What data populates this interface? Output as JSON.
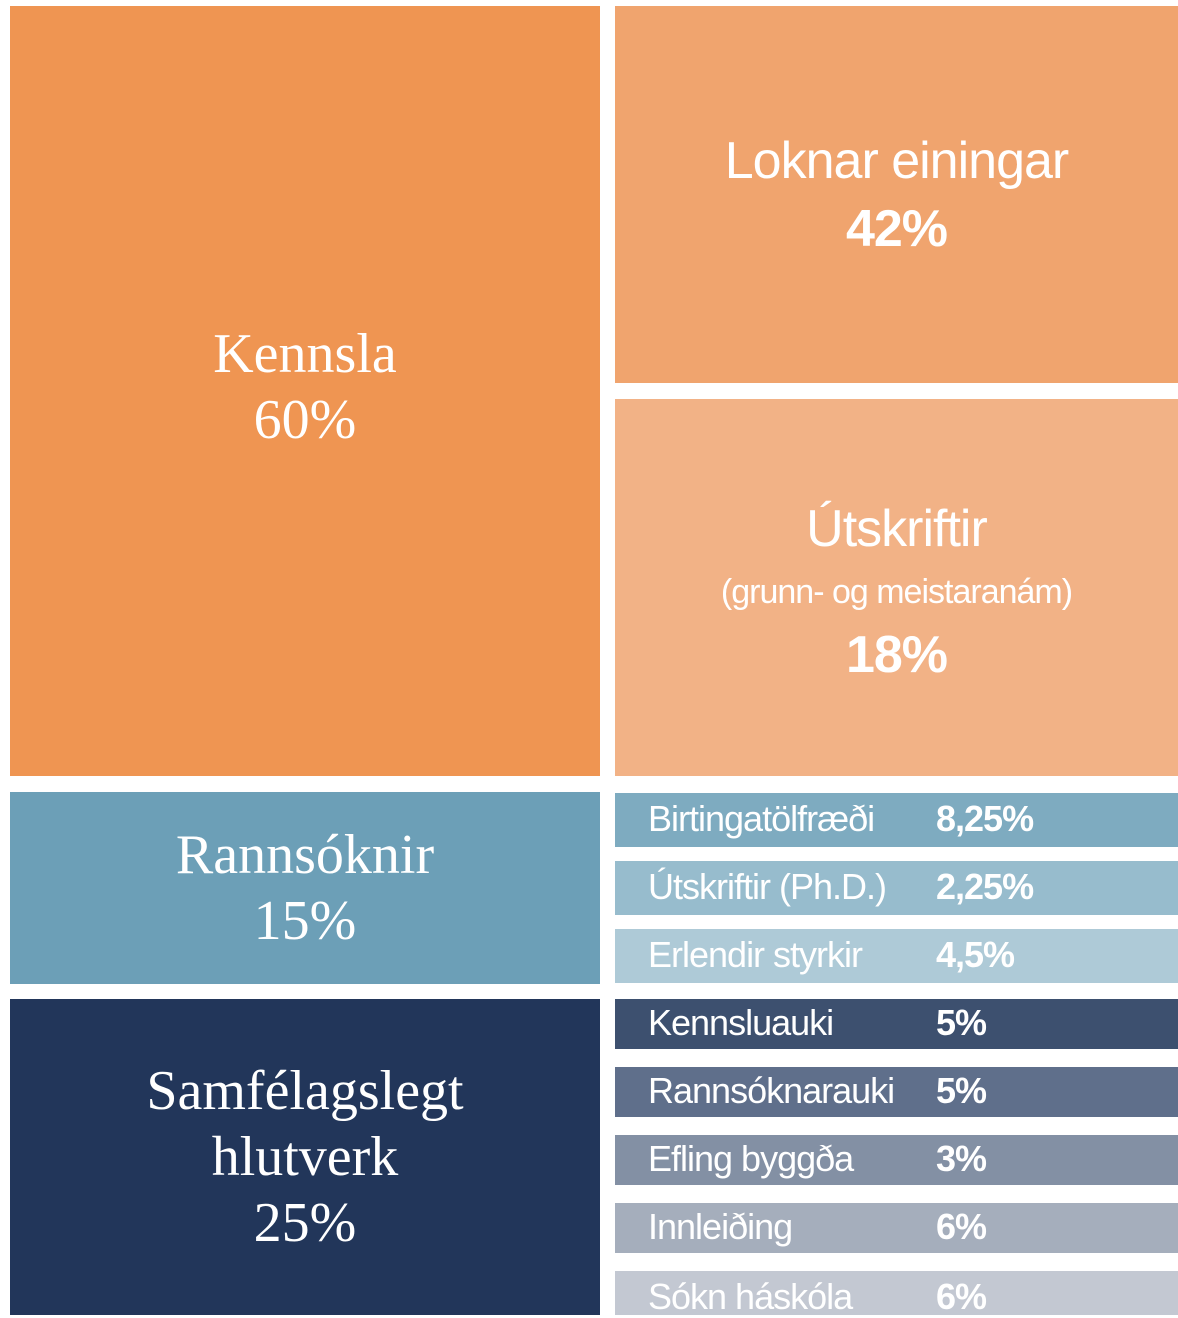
{
  "blocks": [
    {
      "label": "Kennsla",
      "value": "60%",
      "parts": [
        {
          "label": "Loknar einingar",
          "value": "42%"
        },
        {
          "label": "Útskriftir",
          "note": "(grunn- og meistaranám)",
          "value": "18%"
        }
      ]
    },
    {
      "label": "Rannsóknir",
      "value": "15%",
      "parts": [
        {
          "label": "Birtingatölfræði",
          "value": "8,25%"
        },
        {
          "label": "Útskriftir (Ph.D.)",
          "value": "2,25%"
        },
        {
          "label": "Erlendir styrkir",
          "value": "4,5%"
        }
      ]
    },
    {
      "label": "Samfélagslegt hlutverk",
      "value": "25%",
      "parts": [
        {
          "label": "Kennsluauki",
          "value": "5%"
        },
        {
          "label": "Rannsóknarauki",
          "value": "5%"
        },
        {
          "label": "Efling byggða",
          "value": "3%"
        },
        {
          "label": "Innleiðing",
          "value": "6%"
        },
        {
          "label": "Sókn háskóla",
          "value": "6%"
        }
      ]
    }
  ]
}
